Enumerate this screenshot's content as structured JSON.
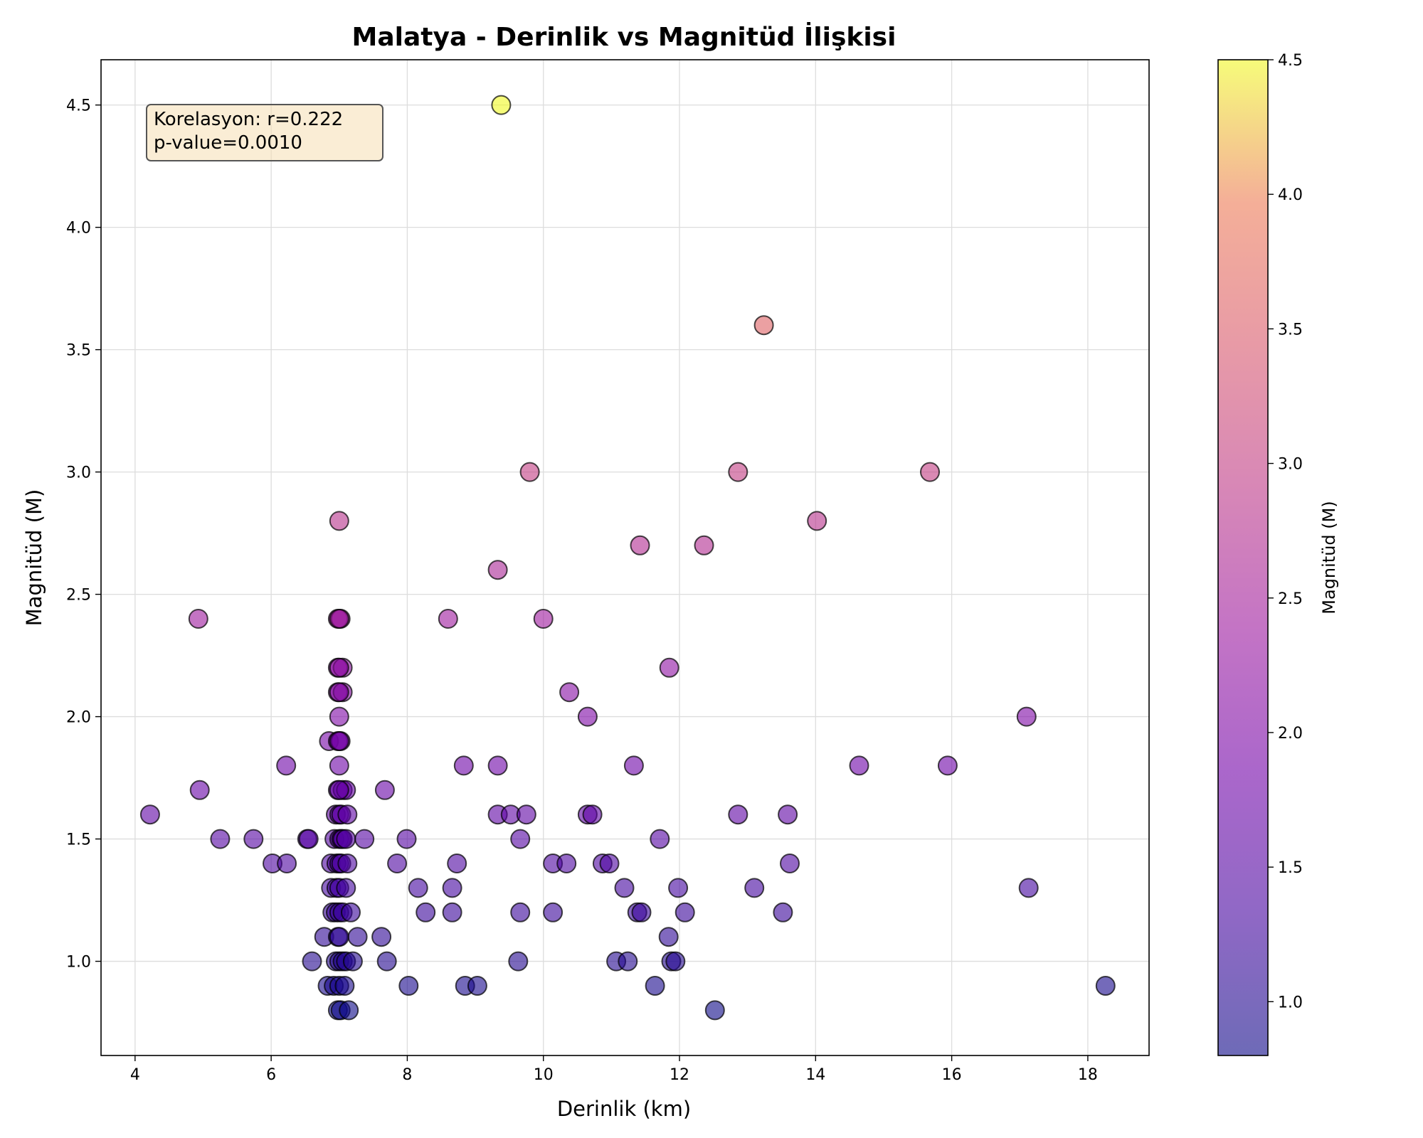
{
  "chart_data": {
    "type": "scatter",
    "title": "Malatya - Derinlik vs Magnitüd İlişkisi",
    "xlabel": "Derinlik (km)",
    "ylabel": "Magnitüd (M)",
    "xlim": [
      3.5,
      18.9
    ],
    "ylim": [
      0.615,
      4.685
    ],
    "xticks": [
      "4",
      "6",
      "8",
      "10",
      "12",
      "14",
      "16",
      "18"
    ],
    "yticks": [
      "1.0",
      "1.5",
      "2.0",
      "2.5",
      "3.0",
      "3.5",
      "4.0",
      "4.5"
    ],
    "grid": true,
    "colormap": "plasma",
    "colorbar": {
      "label": "Magnitüd (M)",
      "range": [
        0.8,
        4.5
      ],
      "ticks": [
        "1.0",
        "1.5",
        "2.0",
        "2.5",
        "3.0",
        "3.5",
        "4.0",
        "4.5"
      ]
    },
    "annotation": {
      "line1": "Korelasyon: r=0.222",
      "line2": "p-value=0.0010"
    },
    "points": [
      [
        9.38,
        4.5
      ],
      [
        13.24,
        3.6
      ],
      [
        9.8,
        3.0
      ],
      [
        12.86,
        3.0
      ],
      [
        15.68,
        3.0
      ],
      [
        7.0,
        2.8
      ],
      [
        14.02,
        2.8
      ],
      [
        11.42,
        2.7
      ],
      [
        12.36,
        2.7
      ],
      [
        9.33,
        2.6
      ],
      [
        4.93,
        2.4
      ],
      [
        6.98,
        2.4
      ],
      [
        7.02,
        2.4
      ],
      [
        7.0,
        2.4
      ],
      [
        8.6,
        2.4
      ],
      [
        10.0,
        2.4
      ],
      [
        6.98,
        2.2
      ],
      [
        7.05,
        2.2
      ],
      [
        7.0,
        2.2
      ],
      [
        11.85,
        2.2
      ],
      [
        6.98,
        2.1
      ],
      [
        7.05,
        2.1
      ],
      [
        7.0,
        2.1
      ],
      [
        10.38,
        2.1
      ],
      [
        7.0,
        2.0
      ],
      [
        10.65,
        2.0
      ],
      [
        17.1,
        2.0
      ],
      [
        6.85,
        1.9
      ],
      [
        6.98,
        1.9
      ],
      [
        7.02,
        1.9
      ],
      [
        7.0,
        1.9
      ],
      [
        6.22,
        1.8
      ],
      [
        7.0,
        1.8
      ],
      [
        8.83,
        1.8
      ],
      [
        9.33,
        1.8
      ],
      [
        11.33,
        1.8
      ],
      [
        14.64,
        1.8
      ],
      [
        15.94,
        1.8
      ],
      [
        4.95,
        1.7
      ],
      [
        6.98,
        1.7
      ],
      [
        7.05,
        1.7
      ],
      [
        7.1,
        1.7
      ],
      [
        7.0,
        1.7
      ],
      [
        7.67,
        1.7
      ],
      [
        4.22,
        1.6
      ],
      [
        6.95,
        1.6
      ],
      [
        7.0,
        1.6
      ],
      [
        7.03,
        1.6
      ],
      [
        7.12,
        1.6
      ],
      [
        9.33,
        1.6
      ],
      [
        9.52,
        1.6
      ],
      [
        9.75,
        1.6
      ],
      [
        10.65,
        1.6
      ],
      [
        10.72,
        1.6
      ],
      [
        12.86,
        1.6
      ],
      [
        13.59,
        1.6
      ],
      [
        5.25,
        1.5
      ],
      [
        5.74,
        1.5
      ],
      [
        6.53,
        1.5
      ],
      [
        6.55,
        1.5
      ],
      [
        6.93,
        1.5
      ],
      [
        7.0,
        1.5
      ],
      [
        7.03,
        1.5
      ],
      [
        7.05,
        1.5
      ],
      [
        7.1,
        1.5
      ],
      [
        7.37,
        1.5
      ],
      [
        7.99,
        1.5
      ],
      [
        9.66,
        1.5
      ],
      [
        11.71,
        1.5
      ],
      [
        6.02,
        1.4
      ],
      [
        6.23,
        1.4
      ],
      [
        6.88,
        1.4
      ],
      [
        6.96,
        1.4
      ],
      [
        7.0,
        1.4
      ],
      [
        7.03,
        1.4
      ],
      [
        7.12,
        1.4
      ],
      [
        7.85,
        1.4
      ],
      [
        8.73,
        1.4
      ],
      [
        10.14,
        1.4
      ],
      [
        10.34,
        1.4
      ],
      [
        10.87,
        1.4
      ],
      [
        10.97,
        1.4
      ],
      [
        13.62,
        1.4
      ],
      [
        6.88,
        1.3
      ],
      [
        6.96,
        1.3
      ],
      [
        7.0,
        1.3
      ],
      [
        7.1,
        1.3
      ],
      [
        8.16,
        1.3
      ],
      [
        8.66,
        1.3
      ],
      [
        11.19,
        1.3
      ],
      [
        11.98,
        1.3
      ],
      [
        13.1,
        1.3
      ],
      [
        17.13,
        1.3
      ],
      [
        6.9,
        1.2
      ],
      [
        6.95,
        1.2
      ],
      [
        7.0,
        1.2
      ],
      [
        7.05,
        1.2
      ],
      [
        7.17,
        1.2
      ],
      [
        8.27,
        1.2
      ],
      [
        8.66,
        1.2
      ],
      [
        9.66,
        1.2
      ],
      [
        10.14,
        1.2
      ],
      [
        11.38,
        1.2
      ],
      [
        11.44,
        1.2
      ],
      [
        12.08,
        1.2
      ],
      [
        13.52,
        1.2
      ],
      [
        6.78,
        1.1
      ],
      [
        6.98,
        1.1
      ],
      [
        7.0,
        1.1
      ],
      [
        7.27,
        1.1
      ],
      [
        7.62,
        1.1
      ],
      [
        11.84,
        1.1
      ],
      [
        6.6,
        1.0
      ],
      [
        6.95,
        1.0
      ],
      [
        7.0,
        1.0
      ],
      [
        7.05,
        1.0
      ],
      [
        7.1,
        1.0
      ],
      [
        7.2,
        1.0
      ],
      [
        7.7,
        1.0
      ],
      [
        9.63,
        1.0
      ],
      [
        11.07,
        1.0
      ],
      [
        11.24,
        1.0
      ],
      [
        11.88,
        1.0
      ],
      [
        11.94,
        1.0
      ],
      [
        6.83,
        0.9
      ],
      [
        6.92,
        0.9
      ],
      [
        7.0,
        0.9
      ],
      [
        7.08,
        0.9
      ],
      [
        8.02,
        0.9
      ],
      [
        8.85,
        0.9
      ],
      [
        9.03,
        0.9
      ],
      [
        11.64,
        0.9
      ],
      [
        18.26,
        0.9
      ],
      [
        6.98,
        0.8
      ],
      [
        7.02,
        0.8
      ],
      [
        7.14,
        0.8
      ],
      [
        12.52,
        0.8
      ]
    ]
  },
  "colors": {
    "edge": "#000000",
    "grid": "#dddddd",
    "annotation_fill": "#f5deb3",
    "annotation_edge": "#555555"
  }
}
